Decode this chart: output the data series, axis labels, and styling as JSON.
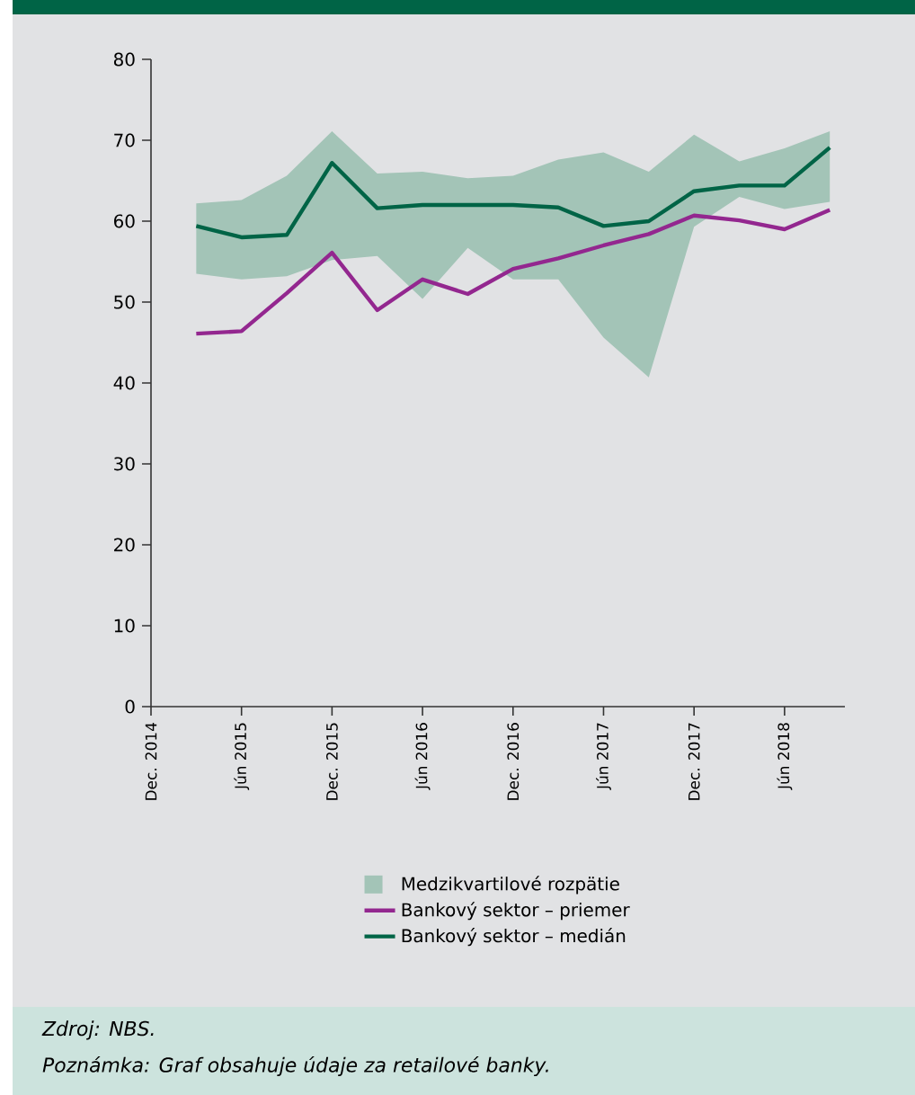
{
  "chart_data": {
    "type": "line",
    "x": [
      "2015-03",
      "2015-06",
      "2015-09",
      "2015-12",
      "2016-03",
      "2016-06",
      "2016-09",
      "2016-12",
      "2017-03",
      "2017-06",
      "2017-09",
      "2017-12",
      "2018-03",
      "2018-06",
      "2018-09"
    ],
    "series": [
      {
        "name": "Bankový sektor – priemer",
        "color": "#93278f",
        "values": [
          46.1,
          46.4,
          51.1,
          56.1,
          49.0,
          52.8,
          51.0,
          54.1,
          55.4,
          57.0,
          58.4,
          60.7,
          60.1,
          59.0,
          61.4
        ]
      },
      {
        "name": "Bankový sektor – medián",
        "color": "#006446",
        "values": [
          59.4,
          58.0,
          58.3,
          67.2,
          61.6,
          62.0,
          62.0,
          62.0,
          61.7,
          59.4,
          60.0,
          63.7,
          64.4,
          64.4,
          69.1
        ],
        "lower": [
          53.5,
          52.8,
          53.2,
          55.2,
          55.7,
          50.4,
          56.7,
          52.8,
          52.8,
          45.6,
          40.7,
          59.3,
          63.0,
          61.5,
          62.4
        ],
        "upper": [
          62.2,
          62.6,
          65.6,
          71.1,
          65.9,
          66.1,
          65.3,
          65.6,
          67.6,
          68.5,
          66.1,
          70.7,
          67.4,
          69.0,
          71.1
        ]
      }
    ],
    "xlim": [
      "2014-12",
      "2018-10"
    ],
    "xticks": [
      {
        "value": "2014-12",
        "label": "Dec. 2014"
      },
      {
        "value": "2015-06",
        "label": "Jún 2015"
      },
      {
        "value": "2015-12",
        "label": "Dec. 2015"
      },
      {
        "value": "2016-06",
        "label": "Jún 2016"
      },
      {
        "value": "2016-12",
        "label": "Dec. 2016"
      },
      {
        "value": "2017-06",
        "label": "Jún 2017"
      },
      {
        "value": "2017-12",
        "label": "Dec. 2017"
      },
      {
        "value": "2018-06",
        "label": "Jún 2018"
      }
    ],
    "ylim": [
      0,
      80
    ],
    "yticks": [
      0,
      10,
      20,
      30,
      40,
      50,
      60,
      70,
      80
    ],
    "grid": false,
    "legend": "bottom",
    "marker": "none",
    "line_style": "solid",
    "annotations": [
      "Medzikvartilové rozpätie",
      "Zdroj: NBS.",
      "Poznámka: Graf obsahuje údaje za retailové banky."
    ]
  }
}
